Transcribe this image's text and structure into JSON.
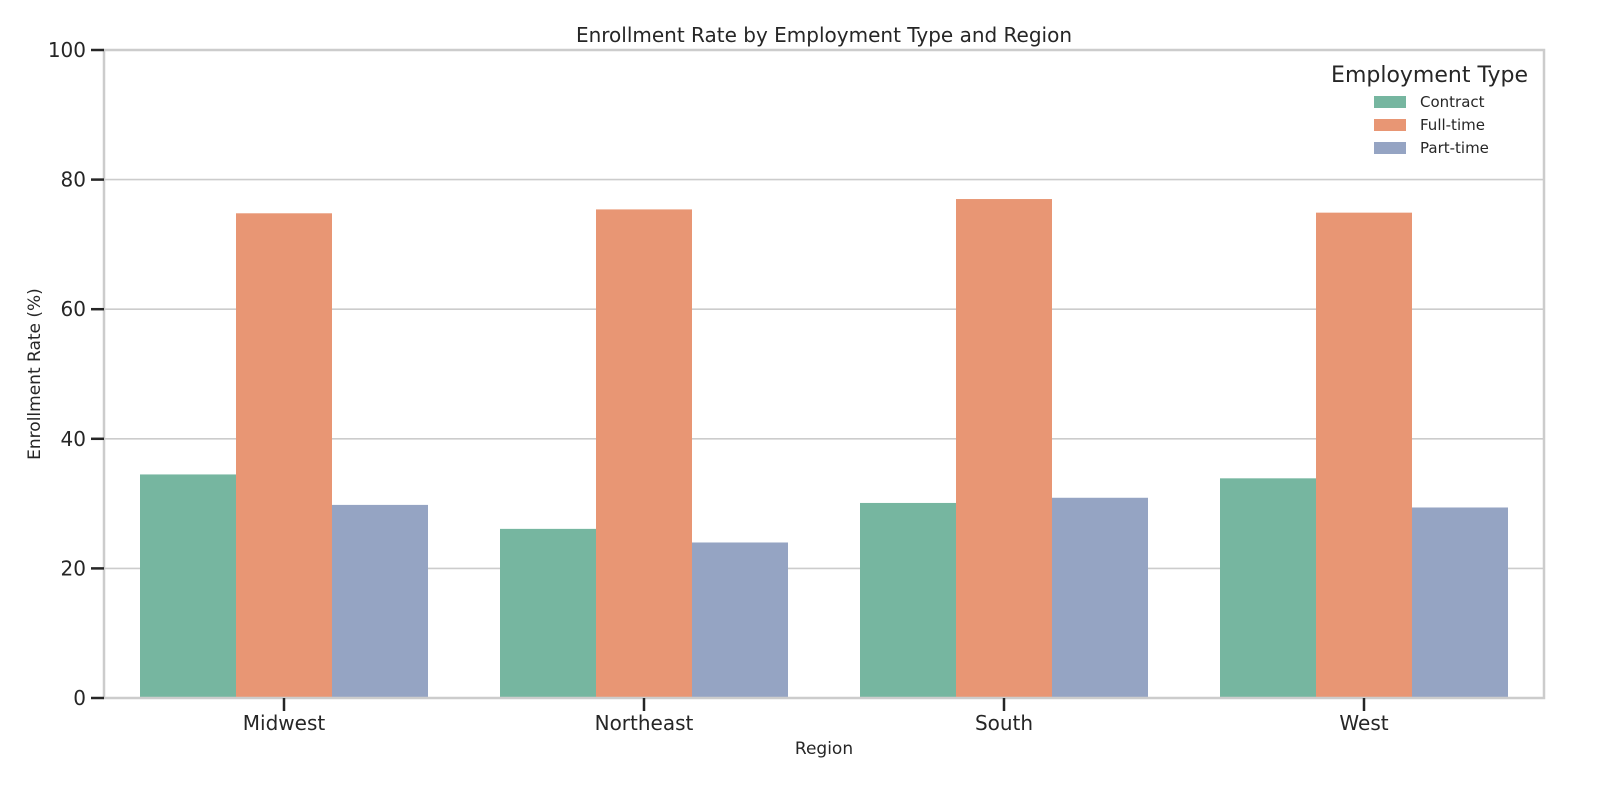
{
  "chart_data": {
    "type": "bar",
    "title": "Enrollment Rate by Employment Type and Region",
    "xlabel": "Region",
    "ylabel": "Enrollment Rate (%)",
    "categories": [
      "Midwest",
      "Northeast",
      "South",
      "West"
    ],
    "series": [
      {
        "name": "Contract",
        "color": "#76b6a0",
        "values": [
          34.5,
          26.1,
          30.1,
          33.9
        ]
      },
      {
        "name": "Full-time",
        "color": "#e89674",
        "values": [
          74.8,
          75.4,
          77.0,
          74.9
        ]
      },
      {
        "name": "Part-time",
        "color": "#95a4c3",
        "values": [
          29.8,
          24.0,
          30.9,
          29.4
        ]
      }
    ],
    "ylim": [
      0,
      100
    ],
    "yticks": [
      0,
      20,
      40,
      60,
      80,
      100
    ],
    "grid": true,
    "legend": {
      "title": "Employment Type",
      "position": "top-right"
    }
  }
}
